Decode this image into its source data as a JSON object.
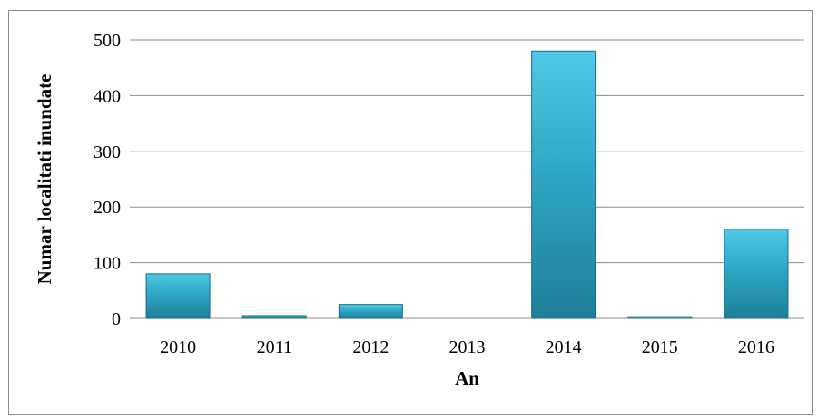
{
  "chart_data": {
    "type": "bar",
    "categories": [
      "2010",
      "2011",
      "2012",
      "2013",
      "2014",
      "2015",
      "2016"
    ],
    "values": [
      80,
      5,
      25,
      0,
      480,
      3,
      160
    ],
    "title": "",
    "xlabel": "An",
    "ylabel": "Numar localitati inundate",
    "ylim": [
      0,
      500
    ],
    "yticks": [
      "0",
      "100",
      "200",
      "300",
      "400",
      "500"
    ],
    "grid": true,
    "legend": "none",
    "colors": {
      "bar_top": "#4fc9e6",
      "bar_mid": "#2fa7c6",
      "bar_bottom": "#1e7f99",
      "bar_edge": "#1a6b82",
      "grid": "#8c8c8c",
      "frame": "#8c8c8c"
    }
  }
}
